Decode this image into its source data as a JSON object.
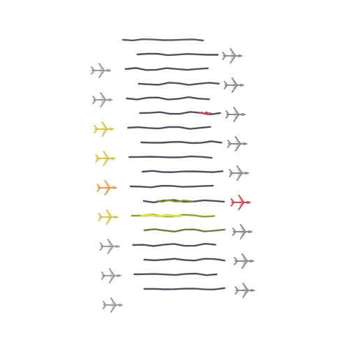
{
  "figure": {
    "description_visible_text": "",
    "rows": [
      {
        "side": "none",
        "line_color": "#5a5a64",
        "icon_color": "#8a8a90",
        "highlight": "none"
      },
      {
        "side": "right",
        "line_color": "#4f4f5a",
        "icon_color": "#8b8b92",
        "highlight": "none"
      },
      {
        "side": "left",
        "line_color": "#4f4f5a",
        "icon_color": "#9a9aa0",
        "highlight": "none"
      },
      {
        "side": "right",
        "line_color": "#4f4f5a",
        "icon_color": "#8b8b92",
        "highlight": "none"
      },
      {
        "side": "left",
        "line_color": "#4f4f5a",
        "icon_color": "#9a9aa0",
        "highlight": "none"
      },
      {
        "side": "right",
        "line_color": "#4f4f5a",
        "icon_color": "#8b8b92",
        "highlight": "red-segment"
      },
      {
        "side": "left",
        "line_color": "#4f4f5a",
        "icon_color": "#d8c54a",
        "highlight": "none"
      },
      {
        "side": "right",
        "line_color": "#4f4f5a",
        "icon_color": "#8b8b92",
        "highlight": "none"
      },
      {
        "side": "left",
        "line_color": "#4f4f5a",
        "icon_color": "#d8c54a",
        "highlight": "none"
      },
      {
        "side": "right",
        "line_color": "#4f4f5a",
        "icon_color": "#8b8b92",
        "highlight": "none"
      },
      {
        "side": "left",
        "line_color": "#4f4f5a",
        "icon_color": "#e0a44a",
        "highlight": "none"
      },
      {
        "side": "right",
        "line_color": "#4f4f5a",
        "icon_color": "#d24a5a",
        "highlight": "olive"
      },
      {
        "side": "left",
        "line_color": "#8aa12a",
        "icon_color": "#d8c54a",
        "highlight": "yellow"
      },
      {
        "side": "right",
        "line_color": "#6e7a42",
        "icon_color": "#8b8b92",
        "highlight": "none"
      },
      {
        "side": "left",
        "line_color": "#4f4f5a",
        "icon_color": "#9a9aa0",
        "highlight": "none"
      },
      {
        "side": "right",
        "line_color": "#4f4f5a",
        "icon_color": "#8b8b92",
        "highlight": "none"
      },
      {
        "side": "left",
        "line_color": "#4f4f5a",
        "icon_color": "#9a9aa0",
        "highlight": "none"
      },
      {
        "side": "right",
        "line_color": "#4f4f5a",
        "icon_color": "#8b8b92",
        "highlight": "none"
      },
      {
        "side": "left",
        "line_color": "none",
        "icon_color": "#9a9aa0",
        "highlight": "none"
      }
    ]
  }
}
